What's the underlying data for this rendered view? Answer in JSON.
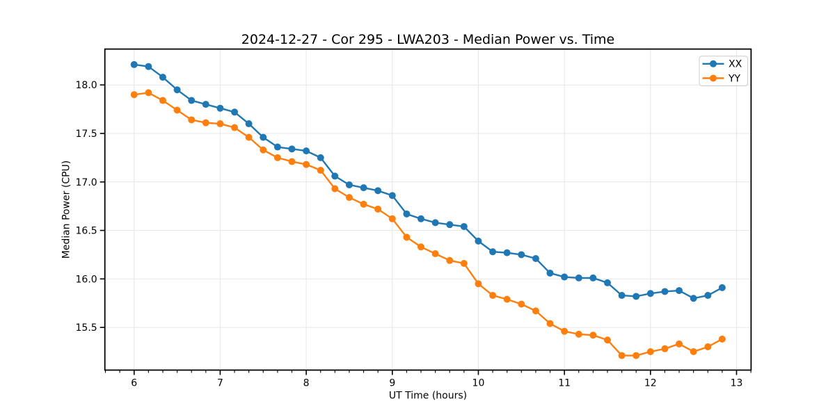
{
  "chart_data": {
    "type": "line",
    "title": "2024-12-27 - Cor 295 - LWA203 - Median Power vs. Time",
    "xlabel": "UT Time (hours)",
    "ylabel": "Median Power (CPU)",
    "xlim": [
      5.66,
      13.169
    ],
    "ylim": [
      15.06,
      18.37
    ],
    "grid": true,
    "legend_position": "upper right",
    "x_ticks": [
      6,
      7,
      8,
      9,
      10,
      11,
      12,
      13
    ],
    "x_tick_labels": [
      "6",
      "7",
      "8",
      "9",
      "10",
      "11",
      "12",
      "13"
    ],
    "x_minor_tick_step_sixths": 1,
    "y_ticks": [
      15.5,
      16.0,
      16.5,
      17.0,
      17.5,
      18.0
    ],
    "y_tick_labels": [
      "15.5",
      "16.0",
      "16.5",
      "17.0",
      "17.5",
      "18.0"
    ],
    "x": [
      6.0,
      6.167,
      6.333,
      6.5,
      6.667,
      6.833,
      7.0,
      7.167,
      7.333,
      7.5,
      7.667,
      7.833,
      8.0,
      8.167,
      8.333,
      8.5,
      8.667,
      8.833,
      9.0,
      9.167,
      9.333,
      9.5,
      9.667,
      9.833,
      10.0,
      10.167,
      10.333,
      10.5,
      10.667,
      10.833,
      11.0,
      11.167,
      11.333,
      11.5,
      11.667,
      11.833,
      12.0,
      12.167,
      12.333,
      12.5,
      12.667,
      12.833
    ],
    "series": [
      {
        "name": "XX",
        "color": "#1f77b4",
        "values": [
          18.21,
          18.19,
          18.08,
          17.95,
          17.84,
          17.8,
          17.76,
          17.72,
          17.6,
          17.46,
          17.36,
          17.34,
          17.32,
          17.25,
          17.06,
          16.97,
          16.94,
          16.91,
          16.86,
          16.67,
          16.62,
          16.58,
          16.56,
          16.54,
          16.39,
          16.28,
          16.27,
          16.25,
          16.21,
          16.06,
          16.02,
          16.01,
          16.01,
          15.96,
          15.83,
          15.82,
          15.85,
          15.87,
          15.88,
          15.8,
          15.83,
          15.91
        ]
      },
      {
        "name": "YY",
        "color": "#ff7f0e",
        "values": [
          17.9,
          17.92,
          17.84,
          17.74,
          17.64,
          17.61,
          17.6,
          17.56,
          17.46,
          17.33,
          17.25,
          17.21,
          17.18,
          17.12,
          16.93,
          16.84,
          16.77,
          16.72,
          16.62,
          16.43,
          16.33,
          16.26,
          16.19,
          16.16,
          15.95,
          15.83,
          15.79,
          15.74,
          15.67,
          15.54,
          15.46,
          15.43,
          15.42,
          15.37,
          15.21,
          15.21,
          15.25,
          15.28,
          15.33,
          15.25,
          15.3,
          15.38
        ]
      }
    ],
    "style": {
      "grid_color": "#e6e6e6",
      "spine_color": "#000000",
      "background": "#ffffff",
      "legend_border_color": "#cccccc"
    }
  }
}
